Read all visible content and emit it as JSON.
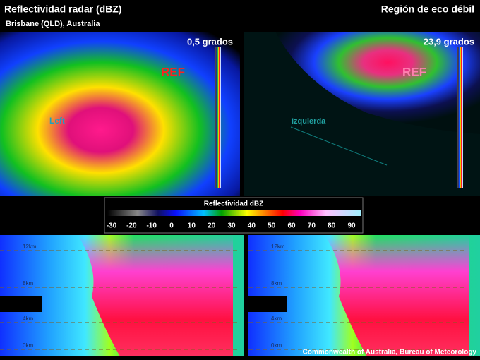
{
  "header": {
    "title": "Reflectividad radar (dBZ)",
    "subtitle": "Brisbane (QLD), Australia",
    "right_title": "Región de eco débil"
  },
  "panels": [
    {
      "angle": "0,5 grados",
      "ref_label": "REF",
      "side_label": "Left"
    },
    {
      "angle": "23,9 grados",
      "ref_label": "REF",
      "side_label": "Izquierda"
    }
  ],
  "colorbar": {
    "title": "Reflectividad dBZ",
    "ticks": [
      -30,
      -20,
      -10,
      0,
      10,
      20,
      30,
      40,
      50,
      60,
      70,
      80,
      90
    ]
  },
  "cross_sections": [
    {
      "heights": [
        "12km",
        "8km",
        "4km",
        "0km"
      ]
    },
    {
      "heights": [
        "12km",
        "8km",
        "4km",
        "0km"
      ]
    }
  ],
  "credit": "Commonwealth of Australia, Bureau of Meteorology"
}
